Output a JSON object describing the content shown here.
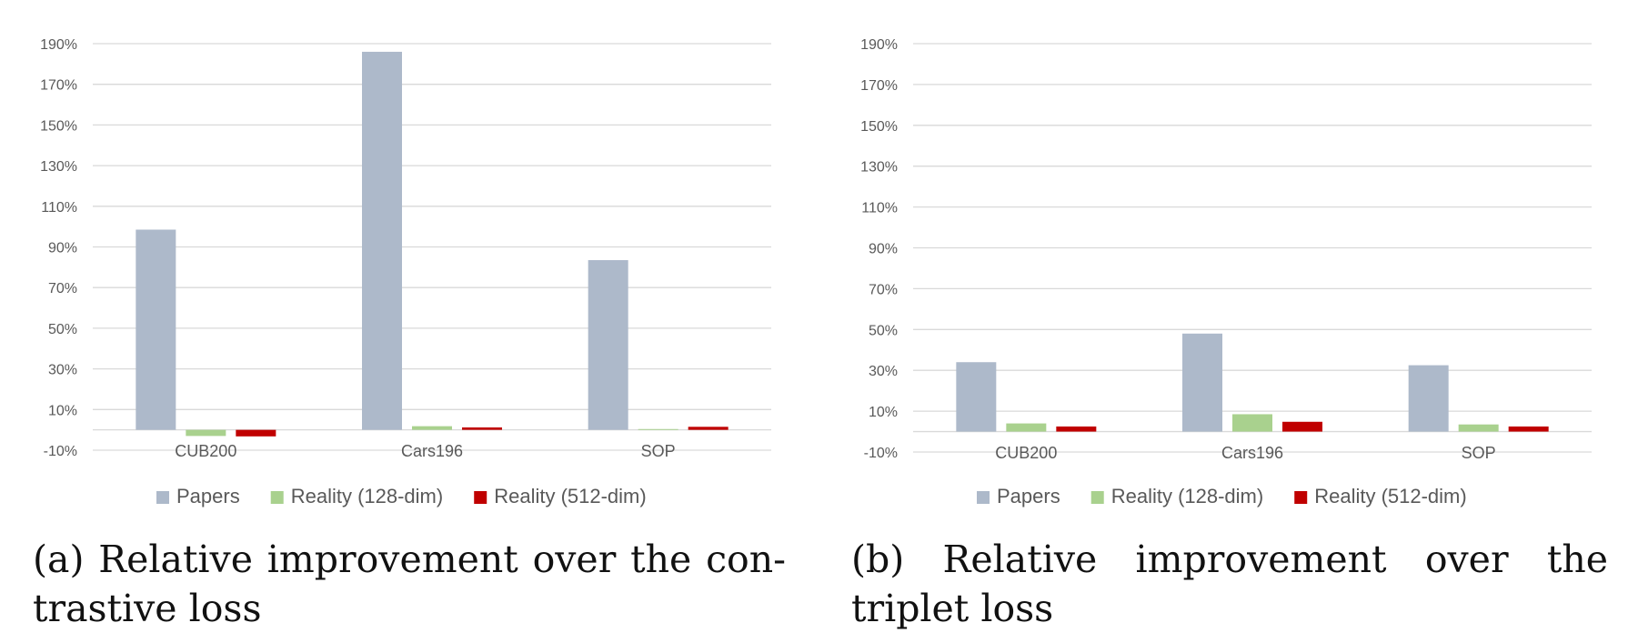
{
  "chart_data": [
    {
      "type": "bar",
      "caption": "(a) Relative improvement over the con- trastive loss",
      "categories": [
        "CUB200",
        "Cars196",
        "SOP"
      ],
      "series": [
        {
          "name": "Papers",
          "color": "#ADB9CA",
          "values": [
            98.5,
            186,
            83.5
          ]
        },
        {
          "name": "Reality (128-dim)",
          "color": "#A9D18E",
          "values": [
            -3,
            1.8,
            0.4
          ]
        },
        {
          "name": "Reality (512-dim)",
          "color": "#C00000",
          "values": [
            -3.2,
            1.2,
            1.5
          ]
        }
      ],
      "yticks": [
        "-10%",
        "10%",
        "30%",
        "50%",
        "70%",
        "90%",
        "110%",
        "130%",
        "150%",
        "170%",
        "190%"
      ],
      "ylim": [
        -10,
        190
      ],
      "y_unit": "%",
      "grid": true,
      "legend": "bottom"
    },
    {
      "type": "bar",
      "caption": "(b) Relative improvement over the triplet loss",
      "categories": [
        "CUB200",
        "Cars196",
        "SOP"
      ],
      "series": [
        {
          "name": "Papers",
          "color": "#ADB9CA",
          "values": [
            34,
            48,
            32.5
          ]
        },
        {
          "name": "Reality (128-dim)",
          "color": "#A9D18E",
          "values": [
            4,
            8.5,
            3.5
          ]
        },
        {
          "name": "Reality (512-dim)",
          "color": "#C00000",
          "values": [
            2.5,
            4.8,
            2.5
          ]
        }
      ],
      "yticks": [
        "-10%",
        "10%",
        "30%",
        "50%",
        "70%",
        "90%",
        "110%",
        "130%",
        "150%",
        "170%",
        "190%"
      ],
      "ylim": [
        -10,
        190
      ],
      "y_unit": "%",
      "grid": true,
      "legend": "bottom"
    }
  ],
  "captions": {
    "a": {
      "line1": "(a) Relative improvement over the con-",
      "line2": "trastive loss"
    },
    "b": {
      "line1": "(b) Relative improvement over the triplet",
      "line2": "loss"
    }
  }
}
